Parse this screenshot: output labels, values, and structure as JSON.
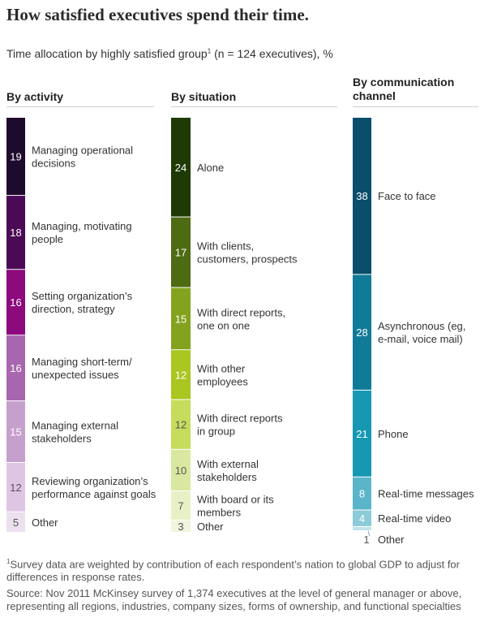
{
  "title": "How satisfied executives spend their time.",
  "subtitle_main": "Time allocation by highly satisfied group",
  "subtitle_note_marker": "1",
  "subtitle_tail": " (n = 124 executives), %",
  "footnote_marker": "1",
  "footnote_text": "Survey data are weighted by contribution of each respondent’s nation to global GDP to adjust for differences in response rates.",
  "source": "Source: Nov 2011 McKinsey survey of 1,374 executives at the level of general manager or above, representing all regions, industries, company sizes, forms of ownership, and functional specialties",
  "chart_data": [
    {
      "type": "bar",
      "title": "By activity",
      "unit": "%",
      "categories": [
        [
          "Managing operational",
          "decisions"
        ],
        [
          "Managing, motivating",
          "people"
        ],
        [
          "Setting organization’s",
          "direction, strategy"
        ],
        [
          "Managing short-term/",
          "unexpected issues"
        ],
        [
          "Managing external",
          "stakeholders"
        ],
        [
          "Reviewing organization’s",
          "performance against goals"
        ],
        [
          "Other"
        ]
      ],
      "values": [
        19,
        18,
        16,
        16,
        15,
        12,
        5
      ],
      "colors": [
        "#1e0a2d",
        "#4b0a55",
        "#8c0a7d",
        "#a866ae",
        "#c6a0cd",
        "#dfc5e4",
        "#ece0ef"
      ],
      "label_colors": [
        "#ffffff",
        "#ffffff",
        "#ffffff",
        "#ffffff",
        "#ffffff",
        "#555555",
        "#555555"
      ]
    },
    {
      "type": "bar",
      "title": "By situation",
      "unit": "%",
      "categories": [
        [
          "Alone"
        ],
        [
          "With clients,",
          "customers, prospects"
        ],
        [
          "With direct reports,",
          "one on one"
        ],
        [
          "With other",
          "employees"
        ],
        [
          "With direct reports",
          "in group"
        ],
        [
          "With external",
          "stakeholders"
        ],
        [
          "With board or its",
          "members"
        ],
        [
          "Other"
        ]
      ],
      "values": [
        24,
        17,
        15,
        12,
        12,
        10,
        7,
        3
      ],
      "colors": [
        "#1e3a05",
        "#4d6b12",
        "#83a31f",
        "#aac620",
        "#c5dc5c",
        "#d9e8a0",
        "#e8f0c6",
        "#f0f5dc"
      ],
      "label_colors": [
        "#ffffff",
        "#ffffff",
        "#ffffff",
        "#ffffff",
        "#555555",
        "#555555",
        "#555555",
        "#555555"
      ]
    },
    {
      "type": "bar",
      "title": "By communication channel",
      "unit": "%",
      "categories": [
        [
          "Face to face"
        ],
        [
          "Asynchronous (eg,",
          "e-mail, voice mail)"
        ],
        [
          "Phone"
        ],
        [
          "Real-time messages"
        ],
        [
          "Real-time video"
        ],
        [
          "Other"
        ]
      ],
      "values": [
        38,
        28,
        21,
        8,
        4,
        1
      ],
      "colors": [
        "#0a4e6b",
        "#107a99",
        "#1698b3",
        "#5bb5c8",
        "#8ccbd8",
        "#bfe3ea"
      ],
      "label_colors": [
        "#ffffff",
        "#ffffff",
        "#ffffff",
        "#ffffff",
        "#ffffff",
        "#555555"
      ]
    }
  ]
}
